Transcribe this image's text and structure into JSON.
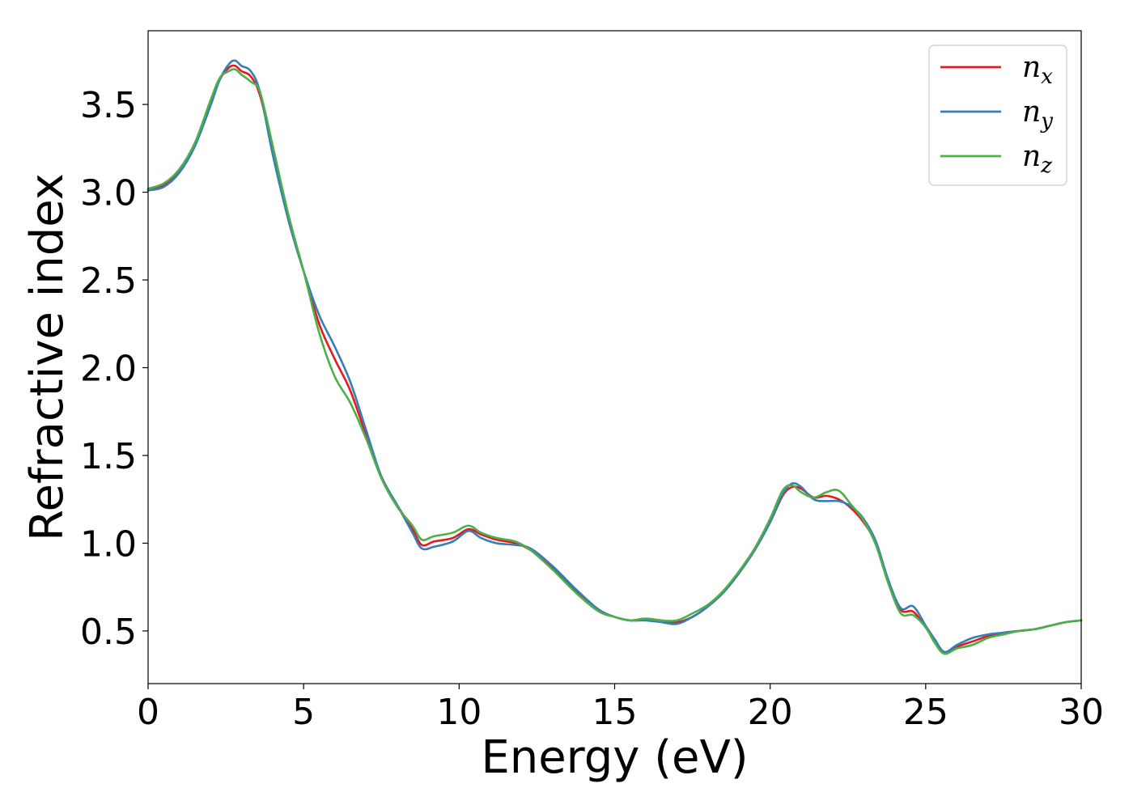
{
  "chart_data": {
    "type": "line",
    "title": "",
    "xlabel": "Energy (eV)",
    "ylabel": "Refractive index",
    "xlim": [
      0,
      30
    ],
    "ylim": [
      0.2,
      3.92
    ],
    "xticks": [
      0,
      5,
      10,
      15,
      20,
      25,
      30
    ],
    "xtick_labels": [
      "0",
      "5",
      "10",
      "15",
      "20",
      "25",
      "30"
    ],
    "yticks": [
      0.5,
      1.0,
      1.5,
      2.0,
      2.5,
      3.0,
      3.5
    ],
    "ytick_labels": [
      "0.5",
      "1.0",
      "1.5",
      "2.0",
      "2.5",
      "3.0",
      "3.5"
    ],
    "grid": false,
    "legend_position": "top-right",
    "series": [
      {
        "name": "n_x",
        "legend_base": "n",
        "legend_sub": "x",
        "color": "#e41a1c",
        "x": [
          0,
          0.5,
          1,
          1.5,
          2,
          2.3,
          2.6,
          2.8,
          3.0,
          3.3,
          3.6,
          4,
          4.5,
          5,
          5.5,
          6,
          6.5,
          7,
          7.5,
          8,
          8.5,
          8.8,
          9.2,
          9.8,
          10.3,
          10.7,
          11.2,
          11.8,
          12.3,
          13,
          13.8,
          14.5,
          15,
          15.5,
          16,
          16.5,
          17,
          17.5,
          18,
          18.5,
          19,
          19.5,
          20,
          20.4,
          20.7,
          21,
          21.4,
          21.8,
          22.2,
          22.6,
          23,
          23.4,
          23.8,
          24.2,
          24.6,
          25,
          25.3,
          25.6,
          26,
          26.5,
          27,
          27.5,
          28,
          28.5,
          29,
          29.5,
          30
        ],
        "y": [
          3.01,
          3.04,
          3.12,
          3.27,
          3.5,
          3.64,
          3.71,
          3.72,
          3.69,
          3.66,
          3.55,
          3.25,
          2.85,
          2.55,
          2.25,
          2.05,
          1.87,
          1.62,
          1.38,
          1.22,
          1.08,
          0.99,
          1.01,
          1.03,
          1.08,
          1.05,
          1.02,
          1.0,
          0.96,
          0.86,
          0.72,
          0.62,
          0.58,
          0.56,
          0.57,
          0.56,
          0.55,
          0.58,
          0.64,
          0.72,
          0.83,
          0.96,
          1.12,
          1.27,
          1.32,
          1.31,
          1.26,
          1.27,
          1.25,
          1.2,
          1.12,
          1.0,
          0.78,
          0.62,
          0.61,
          0.52,
          0.44,
          0.38,
          0.41,
          0.44,
          0.47,
          0.49,
          0.5,
          0.51,
          0.53,
          0.55,
          0.56
        ]
      },
      {
        "name": "n_y",
        "legend_base": "n",
        "legend_sub": "y",
        "color": "#377eb8",
        "x": [
          0,
          0.5,
          1,
          1.5,
          2,
          2.3,
          2.6,
          2.8,
          3.0,
          3.3,
          3.6,
          4,
          4.5,
          5,
          5.5,
          6,
          6.5,
          7,
          7.5,
          8,
          8.5,
          8.8,
          9.2,
          9.8,
          10.3,
          10.7,
          11.2,
          11.8,
          12.3,
          13,
          13.8,
          14.5,
          15,
          15.5,
          16,
          16.5,
          17,
          17.5,
          18,
          18.5,
          19,
          19.5,
          20,
          20.4,
          20.7,
          21,
          21.4,
          21.8,
          22.2,
          22.6,
          23,
          23.4,
          23.8,
          24.2,
          24.6,
          25,
          25.3,
          25.6,
          26,
          26.5,
          27,
          27.5,
          28,
          28.5,
          29,
          29.5,
          30
        ],
        "y": [
          3.01,
          3.03,
          3.11,
          3.26,
          3.49,
          3.64,
          3.73,
          3.75,
          3.72,
          3.69,
          3.57,
          3.22,
          2.85,
          2.55,
          2.3,
          2.12,
          1.92,
          1.65,
          1.38,
          1.22,
          1.06,
          0.97,
          0.98,
          1.01,
          1.07,
          1.03,
          1.0,
          0.99,
          0.97,
          0.87,
          0.73,
          0.62,
          0.58,
          0.56,
          0.56,
          0.55,
          0.54,
          0.58,
          0.64,
          0.72,
          0.83,
          0.96,
          1.12,
          1.28,
          1.34,
          1.32,
          1.25,
          1.24,
          1.24,
          1.21,
          1.14,
          1.01,
          0.79,
          0.63,
          0.64,
          0.53,
          0.45,
          0.38,
          0.42,
          0.46,
          0.48,
          0.49,
          0.5,
          0.51,
          0.53,
          0.55,
          0.56
        ]
      },
      {
        "name": "n_z",
        "legend_base": "n",
        "legend_sub": "z",
        "color": "#4daf4a",
        "x": [
          0,
          0.5,
          1,
          1.5,
          2,
          2.3,
          2.6,
          2.8,
          3.0,
          3.3,
          3.6,
          4,
          4.5,
          5,
          5.5,
          6,
          6.5,
          7,
          7.5,
          8,
          8.5,
          8.8,
          9.2,
          9.8,
          10.3,
          10.7,
          11.2,
          11.8,
          12.3,
          13,
          13.8,
          14.5,
          15,
          15.5,
          16,
          16.5,
          17,
          17.5,
          18,
          18.5,
          19,
          19.5,
          20,
          20.4,
          20.7,
          21,
          21.4,
          21.8,
          22.2,
          22.6,
          23,
          23.4,
          23.8,
          24.2,
          24.6,
          25,
          25.3,
          25.6,
          26,
          26.5,
          27,
          27.5,
          28,
          28.5,
          29,
          29.5,
          30
        ],
        "y": [
          3.02,
          3.05,
          3.13,
          3.28,
          3.52,
          3.65,
          3.69,
          3.7,
          3.67,
          3.63,
          3.57,
          3.27,
          2.88,
          2.55,
          2.2,
          1.95,
          1.8,
          1.6,
          1.37,
          1.21,
          1.1,
          1.02,
          1.04,
          1.06,
          1.1,
          1.06,
          1.03,
          1.01,
          0.96,
          0.85,
          0.71,
          0.61,
          0.58,
          0.56,
          0.57,
          0.56,
          0.56,
          0.6,
          0.65,
          0.73,
          0.84,
          0.97,
          1.14,
          1.3,
          1.33,
          1.29,
          1.26,
          1.29,
          1.3,
          1.22,
          1.13,
          0.99,
          0.77,
          0.6,
          0.59,
          0.52,
          0.43,
          0.37,
          0.4,
          0.42,
          0.46,
          0.48,
          0.5,
          0.51,
          0.53,
          0.55,
          0.56
        ]
      }
    ]
  }
}
